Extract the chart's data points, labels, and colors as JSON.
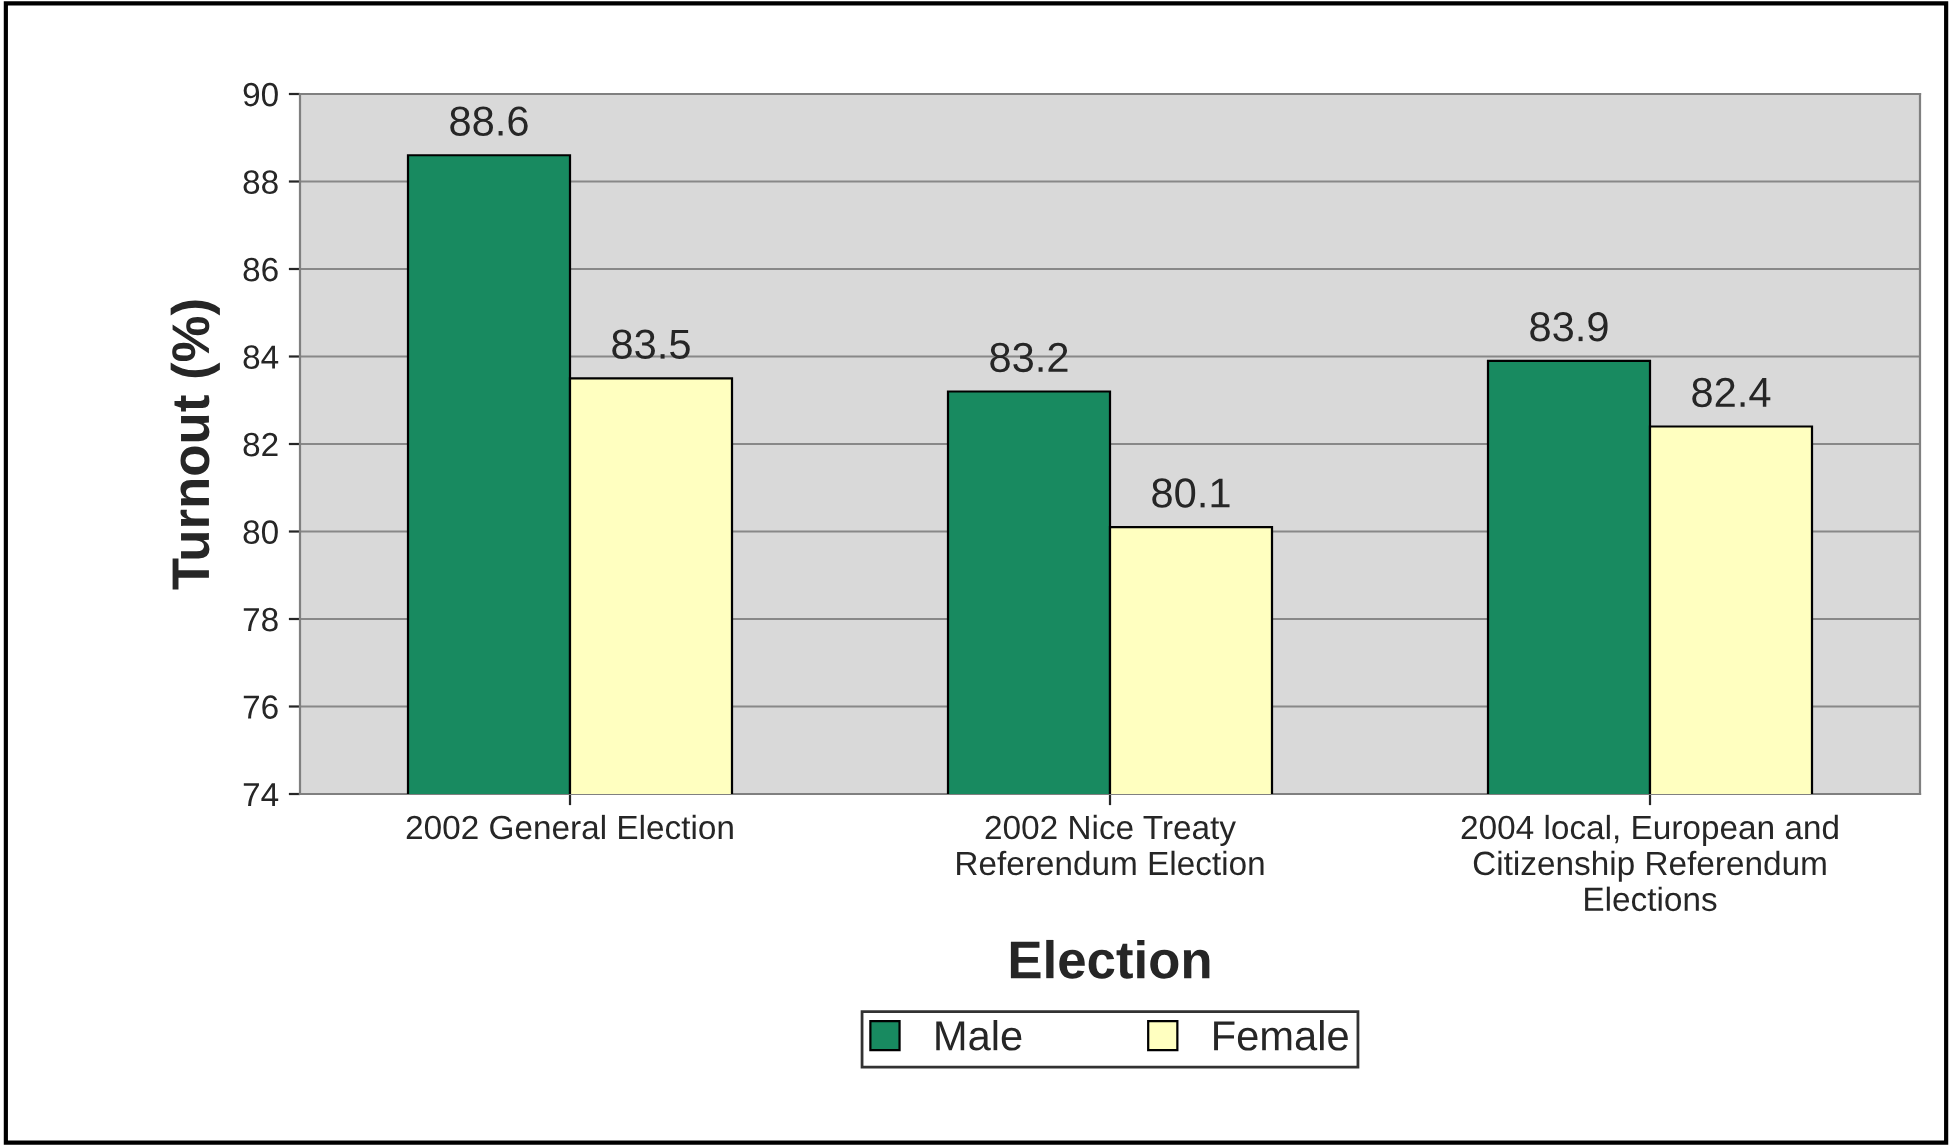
{
  "chart_data": {
    "type": "bar",
    "xlabel": "Election",
    "ylabel": "Turnout (%)",
    "categories": [
      "2002 General Election",
      "2002 Nice Treaty\nReferendum Election",
      "2004 local, European and\nCitizenship Referendum\nElections"
    ],
    "series": [
      {
        "name": "Male",
        "color": "#188a60",
        "values": [
          88.6,
          83.2,
          83.9
        ]
      },
      {
        "name": "Female",
        "color": "#ffffc0",
        "values": [
          83.5,
          80.1,
          82.4
        ]
      }
    ],
    "ylim": [
      74,
      90
    ],
    "yticks": [
      74,
      76,
      78,
      80,
      82,
      84,
      86,
      88,
      90
    ],
    "grid": "y",
    "legend": "bottom",
    "data_labels": true
  }
}
